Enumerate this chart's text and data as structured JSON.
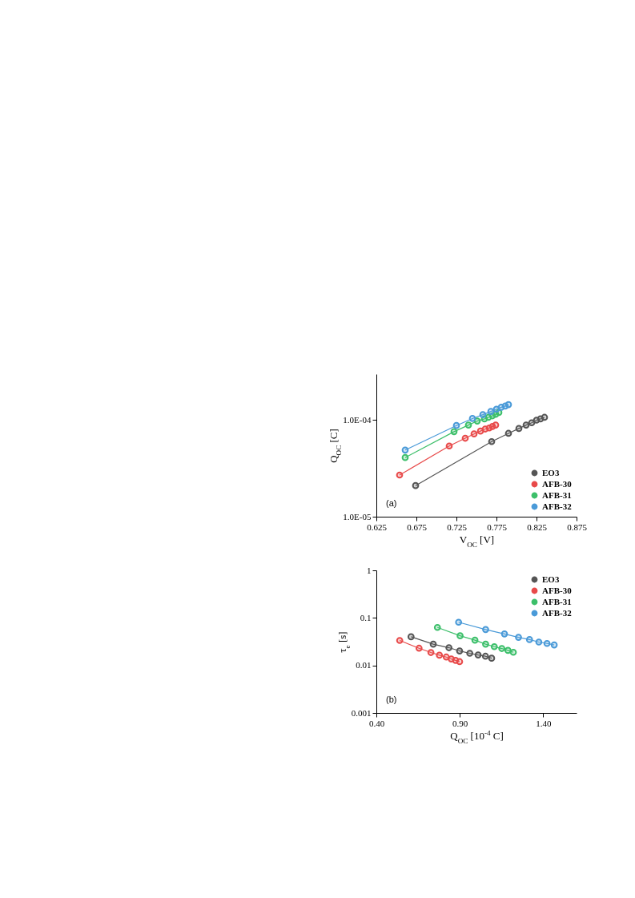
{
  "chart_data": [
    {
      "type": "line",
      "marker": "circle",
      "log": "y",
      "xlabel": "V$_{OC}$ [V]",
      "ylabel": "Q$_{OC}$ [C]",
      "legend": "bottom right",
      "annotations": [
        "(a)"
      ],
      "xlim": [
        0.625,
        0.875
      ],
      "xticks": [
        0.625,
        0.675,
        0.725,
        0.775,
        0.825,
        0.875
      ],
      "ylim": [
        1e-05,
        0.0003
      ],
      "yticks": [
        {
          "value": 1e-05,
          "label": "1.0E-05"
        },
        {
          "value": 0.0001,
          "label": "1.0E-04"
        }
      ],
      "series": [
        {
          "name": "EO3",
          "color": "#555555",
          "x": [
            0.674,
            0.769,
            0.79,
            0.803,
            0.812,
            0.819,
            0.825,
            0.83,
            0.835
          ],
          "values": [
            2.1e-05,
            6e-05,
            7.3e-05,
            8.2e-05,
            8.9e-05,
            9.4e-05,
            0.0001,
            0.000103,
            0.000107
          ]
        },
        {
          "name": "AFB-30",
          "color": "#e84a4a",
          "x": [
            0.654,
            0.716,
            0.736,
            0.747,
            0.755,
            0.761,
            0.766,
            0.77,
            0.774
          ],
          "values": [
            2.7e-05,
            5.4e-05,
            6.5e-05,
            7.2e-05,
            7.7e-05,
            8.1e-05,
            8.3e-05,
            8.6e-05,
            8.9e-05
          ]
        },
        {
          "name": "AFB-31",
          "color": "#3cbf6a",
          "x": [
            0.661,
            0.722,
            0.74,
            0.751,
            0.76,
            0.765,
            0.77,
            0.774,
            0.778
          ],
          "values": [
            4.1e-05,
            7.6e-05,
            8.9e-05,
            9.8e-05,
            0.000103,
            0.000107,
            0.000111,
            0.000115,
            0.00012
          ]
        },
        {
          "name": "AFB-32",
          "color": "#4a9ad8",
          "x": [
            0.661,
            0.725,
            0.745,
            0.758,
            0.768,
            0.775,
            0.781,
            0.786,
            0.79
          ],
          "values": [
            4.9e-05,
            8.8e-05,
            0.000104,
            0.000114,
            0.000123,
            0.00013,
            0.000136,
            0.00014,
            0.000145
          ]
        }
      ]
    },
    {
      "type": "line",
      "marker": "circle",
      "log": "y",
      "xlabel": "Q$_{OC}$ [10$^{-4}$ C]",
      "ylabel": "τ$_{e}$ [s]",
      "legend": "top right",
      "annotations": [
        "(b)"
      ],
      "xlim": [
        0.4,
        1.6
      ],
      "xticks": [
        {
          "value": 0.4,
          "label": "0.40"
        },
        {
          "value": 0.9,
          "label": "0.90"
        },
        {
          "value": 1.4,
          "label": "1.40"
        }
      ],
      "ylim": [
        0.001,
        1
      ],
      "yticks": [
        0.001,
        0.01,
        0.1,
        1
      ],
      "series": [
        {
          "name": "EO3",
          "color": "#555555",
          "x": [
            0.608,
            0.741,
            0.835,
            0.899,
            0.96,
            1.01,
            1.054,
            1.091
          ],
          "values": [
            0.04,
            0.028,
            0.0236,
            0.0202,
            0.018,
            0.0166,
            0.0156,
            0.0142
          ]
        },
        {
          "name": "AFB-30",
          "color": "#e84a4a",
          "x": [
            0.54,
            0.656,
            0.727,
            0.778,
            0.819,
            0.849,
            0.875,
            0.899
          ],
          "values": [
            0.0335,
            0.023,
            0.0187,
            0.0164,
            0.015,
            0.0137,
            0.0128,
            0.012
          ]
        },
        {
          "name": "AFB-31",
          "color": "#3cbf6a",
          "x": [
            0.766,
            0.902,
            0.991,
            1.055,
            1.107,
            1.152,
            1.189,
            1.221
          ],
          "values": [
            0.063,
            0.042,
            0.034,
            0.028,
            0.0248,
            0.0227,
            0.0207,
            0.0189
          ]
        },
        {
          "name": "AFB-32",
          "color": "#4a9ad8",
          "x": [
            0.893,
            1.055,
            1.168,
            1.252,
            1.318,
            1.374,
            1.423,
            1.466
          ],
          "values": [
            0.081,
            0.057,
            0.046,
            0.039,
            0.035,
            0.031,
            0.029,
            0.027
          ]
        }
      ]
    }
  ]
}
